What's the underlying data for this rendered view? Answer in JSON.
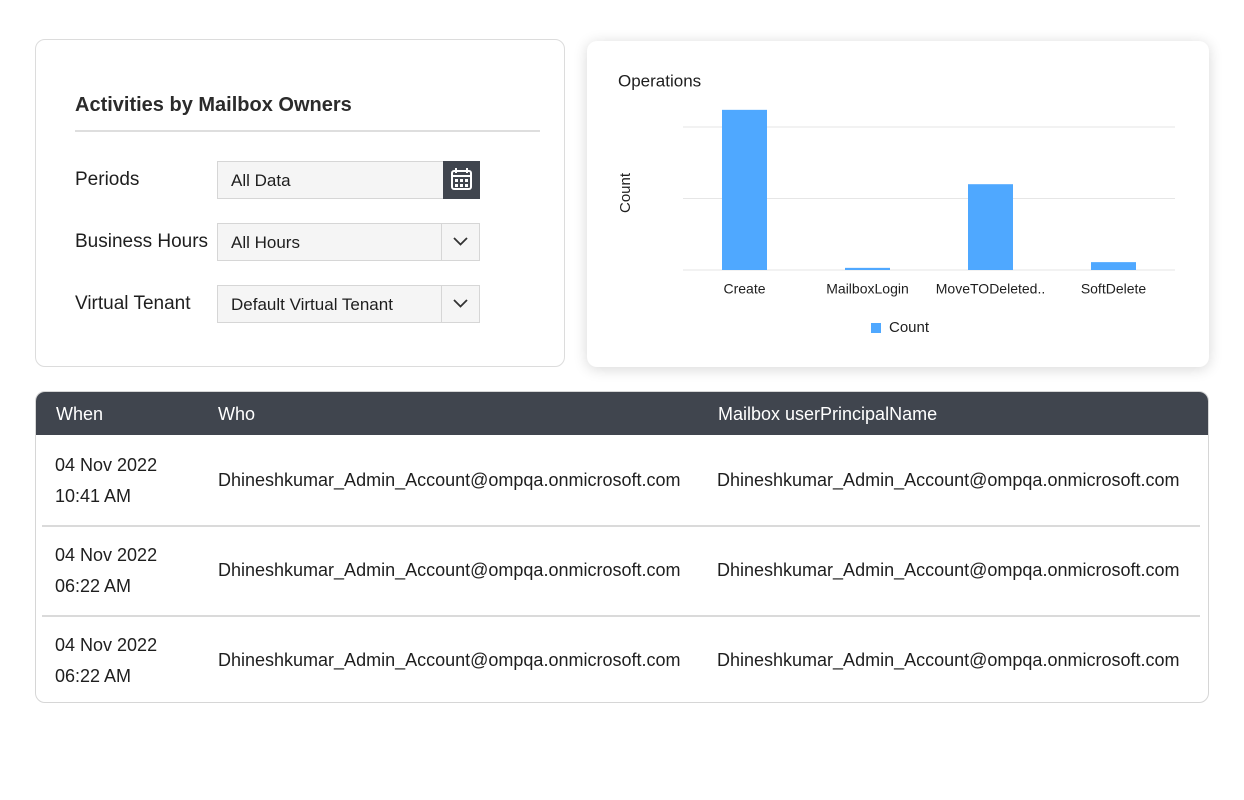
{
  "filters": {
    "title": "Activities by Mailbox Owners",
    "fields": [
      {
        "label": "Periods",
        "value": "All Data"
      },
      {
        "label": "Business Hours",
        "value": "All Hours"
      },
      {
        "label": "Virtual Tenant",
        "value": "Default Virtual Tenant"
      }
    ]
  },
  "chart_data": {
    "type": "bar",
    "title": "Operations",
    "y_label": "Count",
    "categories": [
      "Create",
      "MailboxLogin",
      "MoveTODeleted..",
      "SoftDelete"
    ],
    "series": [
      {
        "name": "Count",
        "color": "#4fa8ff",
        "values": [
          2.24,
          0.03,
          1.2,
          0.11
        ]
      }
    ],
    "ylim": [
      0,
      2.4
    ],
    "yticks": [
      0,
      1,
      2
    ],
    "grid": true,
    "legend": "bottom"
  },
  "table": {
    "columns": [
      "When",
      "Who",
      "Mailbox userPrincipalName"
    ],
    "rows": [
      {
        "date": "04 Nov 2022",
        "time": "10:41 AM",
        "who": "Dhineshkumar_Admin_Account@ompqa.onmicrosoft.com",
        "mailbox": "Dhineshkumar_Admin_Account@ompqa.onmicrosoft.com"
      },
      {
        "date": "04 Nov 2022",
        "time": "06:22 AM",
        "who": "Dhineshkumar_Admin_Account@ompqa.onmicrosoft.com",
        "mailbox": "Dhineshkumar_Admin_Account@ompqa.onmicrosoft.com"
      },
      {
        "date": "04 Nov 2022",
        "time": "06:22 AM",
        "who": "Dhineshkumar_Admin_Account@ompqa.onmicrosoft.com",
        "mailbox": "Dhineshkumar_Admin_Account@ompqa.onmicrosoft.com"
      }
    ]
  }
}
